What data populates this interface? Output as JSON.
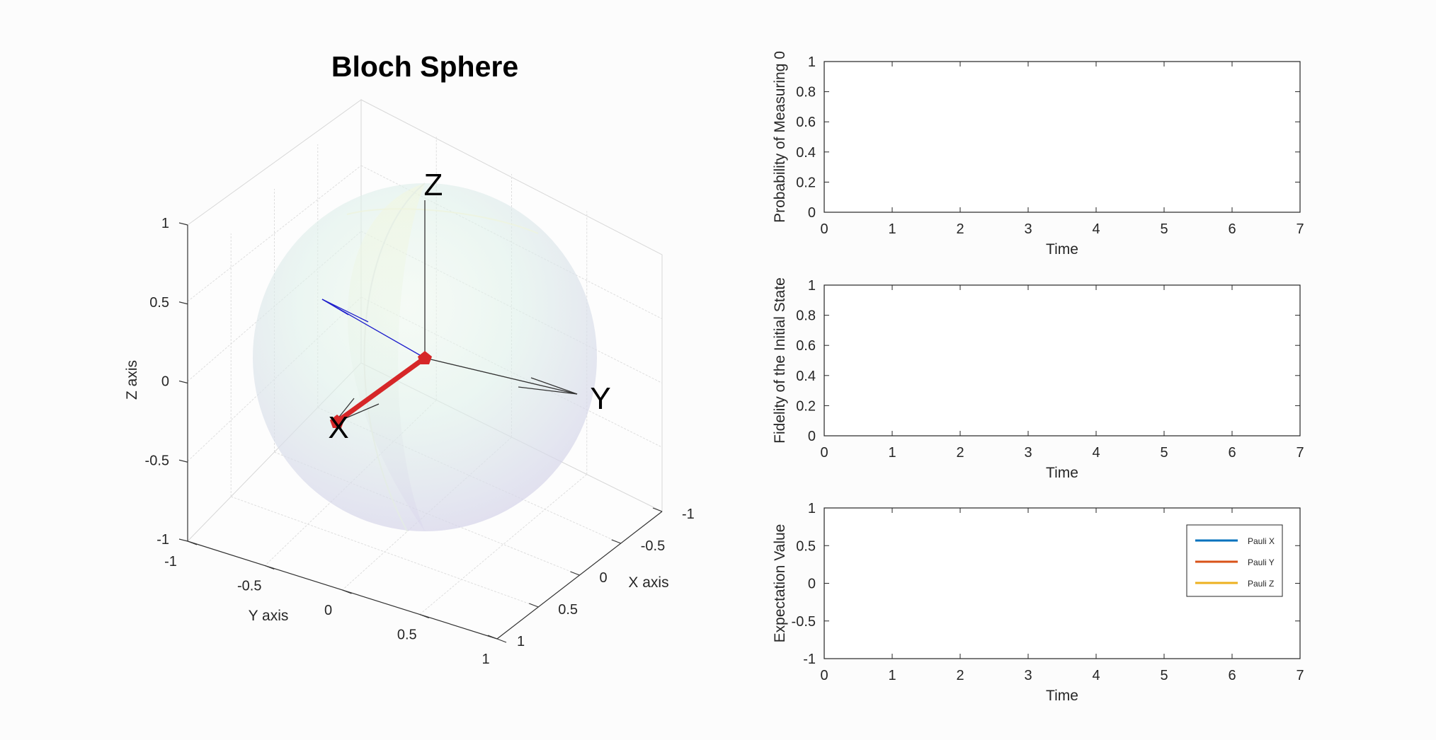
{
  "chart_data": [
    {
      "type": "3d-vector",
      "title": "Bloch Sphere",
      "xlabel": "X axis",
      "ylabel": "Y axis",
      "zlabel": "Z axis",
      "xlim": [
        -1,
        1
      ],
      "ylim": [
        -1,
        1
      ],
      "zlim": [
        -1,
        1
      ],
      "x_ticks": [
        "-1",
        "-0.5",
        "0",
        "0.5",
        "1"
      ],
      "y_ticks": [
        "-1",
        "-0.5",
        "0",
        "0.5",
        "1"
      ],
      "z_ticks": [
        "-1",
        "-0.5",
        "0",
        "0.5",
        "1"
      ],
      "axis_letters": {
        "x": "X",
        "y": "Y",
        "z": "Z"
      },
      "grid": true,
      "sphere": "semi-transparent surface",
      "state_vector": {
        "x": 1,
        "y": 0,
        "z": 0,
        "color": "#d62728"
      },
      "secondary_vector": {
        "x": 0.3,
        "y": -0.65,
        "z": 0.45,
        "color": "#1f1fcc"
      }
    },
    {
      "type": "line",
      "title": "",
      "xlabel": "Time",
      "ylabel": "Probability of Measuring 0",
      "xlim": [
        0,
        7
      ],
      "ylim": [
        0,
        1
      ],
      "x_ticks": [
        "0",
        "1",
        "2",
        "3",
        "4",
        "5",
        "6",
        "7"
      ],
      "y_ticks": [
        "0",
        "0.2",
        "0.4",
        "0.6",
        "0.8",
        "1"
      ],
      "series": []
    },
    {
      "type": "line",
      "title": "",
      "xlabel": "Time",
      "ylabel": "Fidelity of the Initial State",
      "xlim": [
        0,
        7
      ],
      "ylim": [
        0,
        1
      ],
      "x_ticks": [
        "0",
        "1",
        "2",
        "3",
        "4",
        "5",
        "6",
        "7"
      ],
      "y_ticks": [
        "0",
        "0.2",
        "0.4",
        "0.6",
        "0.8",
        "1"
      ],
      "series": []
    },
    {
      "type": "line",
      "title": "",
      "xlabel": "Time",
      "ylabel": "Expectation Value",
      "xlim": [
        0,
        7
      ],
      "ylim": [
        -1,
        1
      ],
      "x_ticks": [
        "0",
        "1",
        "2",
        "3",
        "4",
        "5",
        "6",
        "7"
      ],
      "y_ticks": [
        "-1",
        "-0.5",
        "0",
        "0.5",
        "1"
      ],
      "legend": "right",
      "series": [
        {
          "name": "Pauli X",
          "color": "#0072bd",
          "values": []
        },
        {
          "name": "Pauli Y",
          "color": "#d95319",
          "values": []
        },
        {
          "name": "Pauli Z",
          "color": "#edb120",
          "values": []
        }
      ]
    }
  ]
}
